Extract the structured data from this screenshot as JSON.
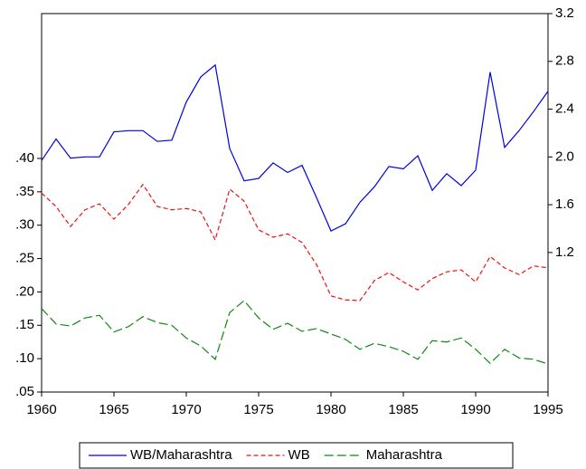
{
  "chart_data": {
    "type": "line",
    "x": [
      1960,
      1961,
      1962,
      1963,
      1964,
      1965,
      1966,
      1967,
      1968,
      1969,
      1970,
      1971,
      1972,
      1973,
      1974,
      1975,
      1976,
      1977,
      1978,
      1979,
      1980,
      1981,
      1982,
      1983,
      1984,
      1985,
      1986,
      1987,
      1988,
      1989,
      1990,
      1991,
      1992,
      1993,
      1994,
      1995
    ],
    "xlim": [
      1960,
      1995
    ],
    "xticks": [
      1960,
      1965,
      1970,
      1975,
      1980,
      1985,
      1990,
      1995
    ],
    "ylim": [
      0.05,
      0.617
    ],
    "yticks": [
      {
        "value": 0.05,
        "label": ".05"
      },
      {
        "value": 0.1,
        "label": ".10"
      },
      {
        "value": 0.15,
        "label": ".15"
      },
      {
        "value": 0.2,
        "label": ".20"
      },
      {
        "value": 0.25,
        "label": ".25"
      },
      {
        "value": 0.3,
        "label": ".30"
      },
      {
        "value": 0.35,
        "label": ".35"
      },
      {
        "value": 0.4,
        "label": ".40"
      }
    ],
    "y2lim": [
      0.032,
      3.2
    ],
    "y2ticks": [
      1.2,
      1.6,
      {
        "value": 2.0,
        "label": "2.0"
      },
      2.4,
      2.8,
      3.2
    ],
    "grid": false,
    "legend": "bottom",
    "series": [
      {
        "name": "WB/Maharashtra",
        "color": "#0000dd",
        "dash": "solid",
        "axis": "y2",
        "values": [
          1.97,
          2.15,
          1.99,
          2.0,
          2.0,
          2.21,
          2.22,
          2.22,
          2.13,
          2.14,
          2.46,
          2.67,
          2.77,
          2.07,
          1.8,
          1.82,
          1.95,
          1.87,
          1.93,
          1.66,
          1.38,
          1.44,
          1.62,
          1.75,
          1.92,
          1.9,
          2.01,
          1.72,
          1.86,
          1.76,
          1.89,
          2.71,
          2.08,
          2.22,
          2.38,
          2.55
        ]
      },
      {
        "name": "WB",
        "color": "#ee1111",
        "dash": "short",
        "axis": "y",
        "values": [
          0.348,
          0.328,
          0.298,
          0.323,
          0.332,
          0.309,
          0.331,
          0.361,
          0.328,
          0.323,
          0.325,
          0.32,
          0.278,
          0.354,
          0.336,
          0.293,
          0.282,
          0.287,
          0.274,
          0.241,
          0.194,
          0.188,
          0.187,
          0.217,
          0.229,
          0.215,
          0.203,
          0.22,
          0.23,
          0.233,
          0.215,
          0.253,
          0.236,
          0.226,
          0.239,
          0.236
        ]
      },
      {
        "name": "Maharashtra",
        "color": "#118811",
        "dash": "long",
        "axis": "y",
        "values": [
          0.175,
          0.152,
          0.149,
          0.161,
          0.165,
          0.14,
          0.148,
          0.163,
          0.154,
          0.15,
          0.131,
          0.119,
          0.099,
          0.169,
          0.187,
          0.161,
          0.144,
          0.153,
          0.141,
          0.145,
          0.137,
          0.129,
          0.114,
          0.123,
          0.118,
          0.111,
          0.099,
          0.127,
          0.125,
          0.131,
          0.114,
          0.093,
          0.114,
          0.101,
          0.099,
          0.092
        ]
      }
    ]
  }
}
